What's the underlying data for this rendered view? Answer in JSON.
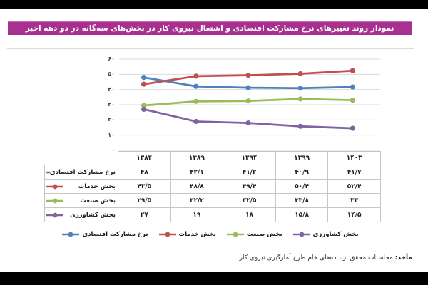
{
  "title_banner": {
    "text": "نمودار روند تغییرهای نرخ مشارکت اقتصادی و اشتغال نیروی کار در بخش‌های سه‌گانه در دو دهه اخیر",
    "bg": "#a83190",
    "edge": "#c56fb3",
    "text_color": "#ffffff"
  },
  "chart_data": {
    "type": "line",
    "title": "نمودار روند تغییرهای نرخ مشارکت اقتصادی و اشتغال نیروی کار در بخش‌های سه‌گانه در دو دهه اخیر",
    "categories": [
      "۱۳۸۴",
      "۱۳۸۹",
      "۱۳۹۴",
      "۱۳۹۹",
      "۱۴۰۳"
    ],
    "series": [
      {
        "name": "نرخ مشارکت اقتصادی",
        "color": "#4f81bd",
        "values": [
          48,
          42.1,
          41.2,
          40.9,
          41.7
        ],
        "display": [
          "۴۸",
          "۴۲/۱",
          "۴۱/۲",
          "۴۰/۹",
          "۴۱/۷"
        ]
      },
      {
        "name": "بخش خدمات",
        "color": "#c0504d",
        "values": [
          43.5,
          48.8,
          49.4,
          50.4,
          52.4
        ],
        "display": [
          "۴۳/۵",
          "۴۸/۸",
          "۴۹/۴",
          "۵۰/۴",
          "۵۲/۴"
        ]
      },
      {
        "name": "بخش صنعت",
        "color": "#9bbb59",
        "values": [
          29.5,
          32.2,
          32.5,
          33.8,
          33
        ],
        "display": [
          "۲۹/۵",
          "۳۲/۲",
          "۳۲/۵",
          "۳۳/۸",
          "۳۳"
        ]
      },
      {
        "name": "بخش کشاورزی",
        "color": "#8064a2",
        "values": [
          27,
          19,
          18,
          15.8,
          14.5
        ],
        "display": [
          "۲۷",
          "۱۹",
          "۱۸",
          "۱۵/۸",
          "۱۴/۵"
        ]
      }
    ],
    "y_axis": {
      "min": 0,
      "max": 60,
      "step": 10,
      "tick_labels": [
        "۶۰",
        "۵۰",
        "۴۰",
        "۳۰",
        "۲۰",
        "۱۰",
        "۰"
      ]
    },
    "grid": true,
    "grid_color": "#d9d9d9",
    "table_border_color": "#c6c6c6",
    "legend_position": "bottom"
  },
  "source_note": {
    "label": "مأخذ:",
    "text": "محاسبات محقق از داده‌های خام طرح آمارگیری نیروی کار."
  }
}
